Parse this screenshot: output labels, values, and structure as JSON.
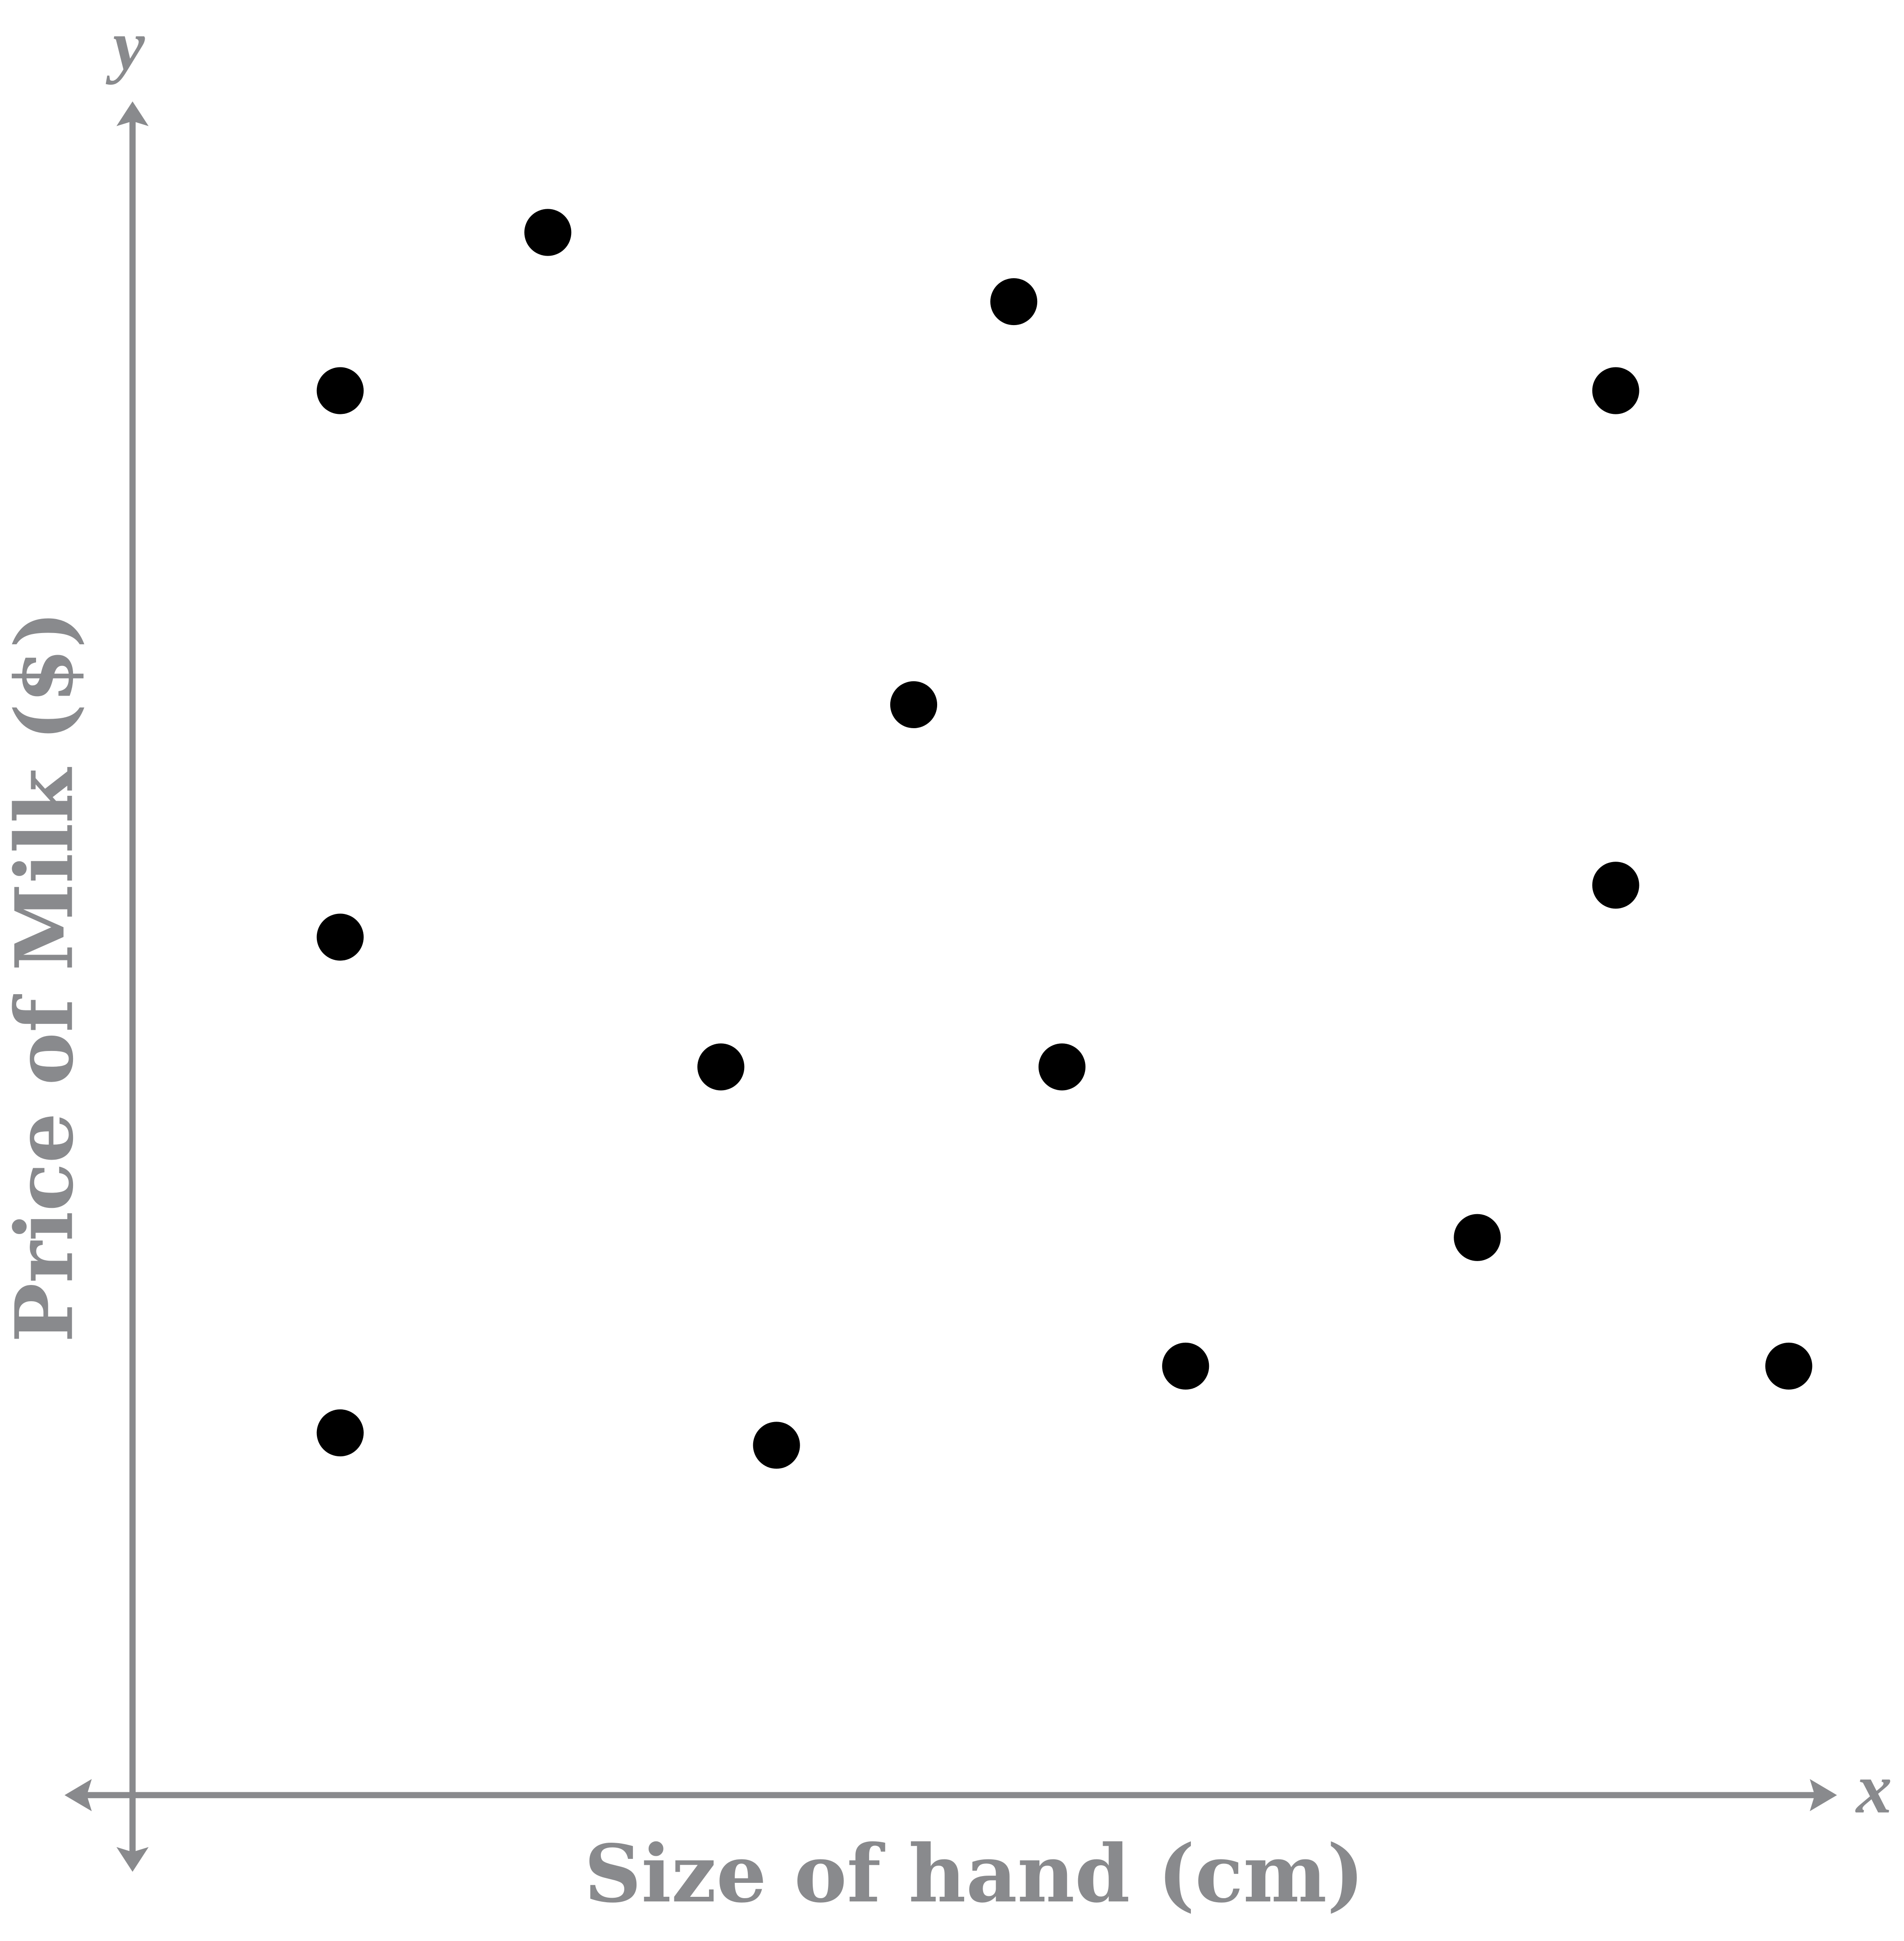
{
  "chart_data": {
    "type": "scatter",
    "title": "",
    "xlabel": "Size of hand (cm)",
    "ylabel": "Price of Milk ($)",
    "x_axis_symbol": "x",
    "y_axis_symbol": "y",
    "grid": false,
    "ticks": false,
    "point_color": "#000000",
    "axis_color": "#898a8d",
    "xlim": [
      -0.5,
      13.8
    ],
    "ylim": [
      -0.6,
      13.7
    ],
    "points": [
      {
        "x": 1.68,
        "y": 11.36
      },
      {
        "x": 3.36,
        "y": 12.64
      },
      {
        "x": 7.13,
        "y": 12.08
      },
      {
        "x": 12.0,
        "y": 11.36
      },
      {
        "x": 6.32,
        "y": 8.82
      },
      {
        "x": 12.0,
        "y": 7.36
      },
      {
        "x": 1.68,
        "y": 6.94
      },
      {
        "x": 4.76,
        "y": 5.89
      },
      {
        "x": 7.52,
        "y": 5.89
      },
      {
        "x": 10.88,
        "y": 4.51
      },
      {
        "x": 8.52,
        "y": 3.47
      },
      {
        "x": 13.4,
        "y": 3.47
      },
      {
        "x": 1.68,
        "y": 2.93
      },
      {
        "x": 5.21,
        "y": 2.83
      }
    ]
  }
}
